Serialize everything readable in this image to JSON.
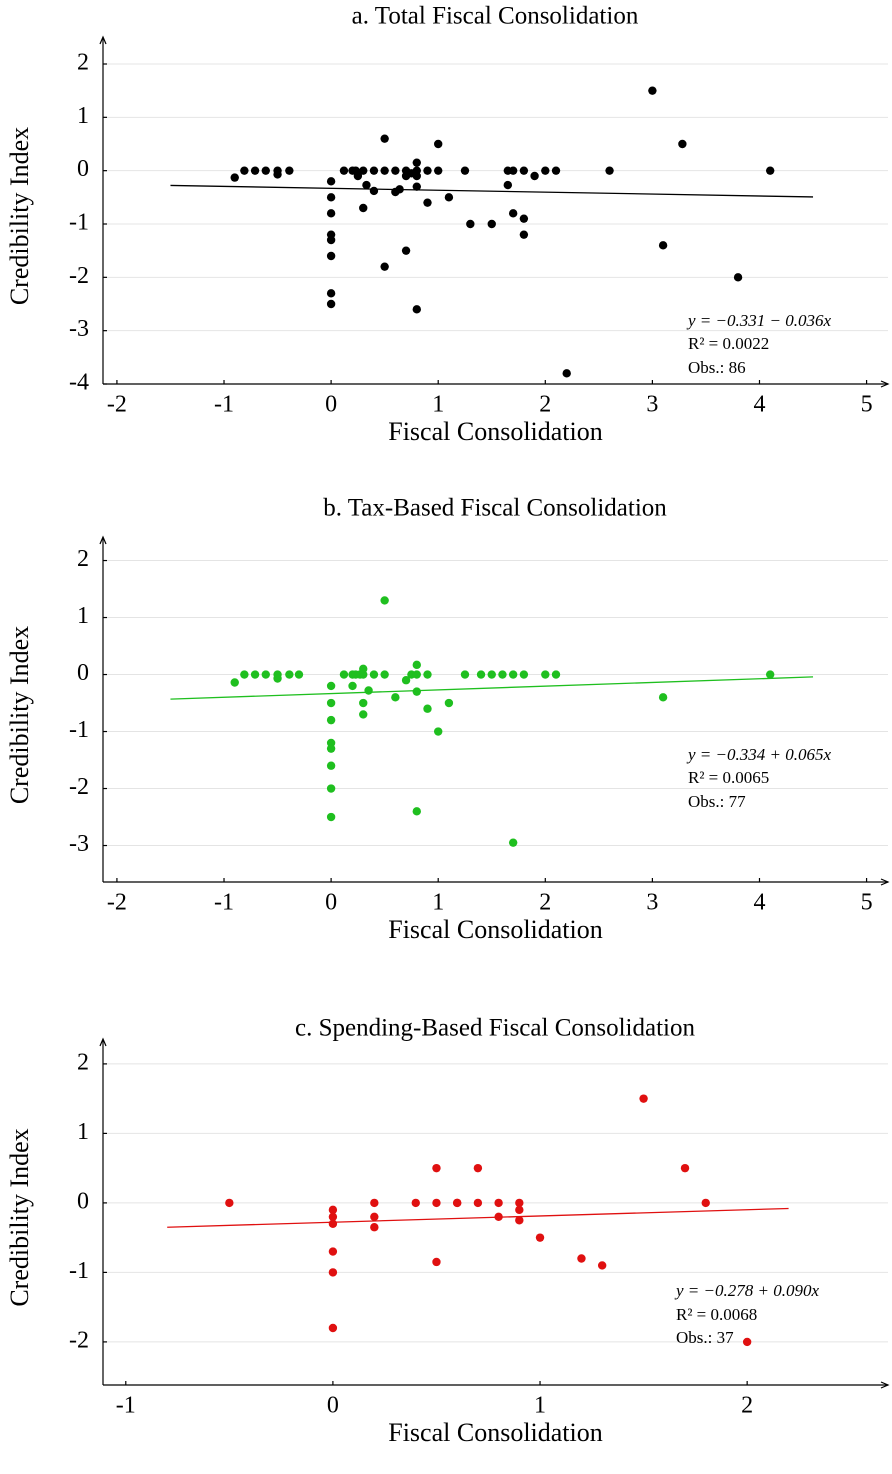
{
  "chart_data": [
    {
      "type": "scatter",
      "title": "a. Total Fiscal Consolidation",
      "x_label": "Fiscal Consolidation",
      "y_label": "Credibility Index",
      "color": "#000000",
      "grid": true,
      "xlim": [
        -2.13,
        5.2
      ],
      "ylim": [
        -4,
        2.3
      ],
      "xticks": [
        -2,
        -1,
        0,
        1,
        2,
        3,
        4,
        5
      ],
      "yticks": [
        -4,
        -3,
        -2,
        -1,
        0,
        1,
        2
      ],
      "x": [
        -0.9,
        -0.81,
        -0.71,
        -0.61,
        -0.5,
        -0.5,
        -0.39,
        0,
        0,
        0,
        0,
        0,
        0,
        0,
        0,
        0.12,
        0.2,
        0.23,
        0.25,
        0.3,
        0.33,
        0.3,
        0.4,
        0.4,
        0.5,
        0.5,
        0.5,
        0.6,
        0.6,
        0.64,
        0.7,
        0.7,
        0.7,
        0.75,
        0.8,
        0.8,
        0.8,
        0.8,
        0.8,
        0.9,
        0.9,
        1,
        1,
        1.1,
        1.25,
        1.3,
        1.5,
        1.65,
        1.65,
        1.7,
        1.7,
        1.8,
        1.8,
        1.8,
        1.9,
        2,
        2.1,
        2.2,
        2.6,
        3,
        3.1,
        3.28,
        3.8,
        4.1
      ],
      "values": [
        -0.13,
        0,
        0,
        0,
        0,
        -0.07,
        0,
        -0.2,
        -0.5,
        -0.8,
        -1.2,
        -1.3,
        -1.6,
        -2.3,
        -2.5,
        0,
        0,
        0,
        -0.1,
        0,
        -0.27,
        -0.7,
        0,
        -0.38,
        0.6,
        0,
        -1.8,
        0,
        -0.4,
        -0.35,
        -1.5,
        0,
        -0.1,
        -0.05,
        0.15,
        0,
        -0.1,
        -0.3,
        -2.6,
        -0.6,
        0,
        0,
        0.5,
        -0.5,
        0,
        -1,
        -1,
        0,
        -0.27,
        -0.8,
        0,
        0,
        -0.9,
        -1.2,
        -0.1,
        0,
        0,
        -3.8,
        0,
        1.5,
        -1.4,
        0.5,
        -2,
        0
      ],
      "fit": {
        "x": [
          -1.5,
          4.5
        ],
        "y": [
          -0.277,
          -0.493
        ]
      },
      "annotations": [
        "y = −0.331 − 0.036x",
        "R² = 0.0022",
        "Obs.: 86"
      ]
    },
    {
      "type": "scatter",
      "title": "b. Tax-Based Fiscal Consolidation",
      "x_label": "Fiscal Consolidation",
      "y_label": "Credibility Index",
      "color": "#1fbf1f",
      "grid": true,
      "xlim": [
        -2.13,
        5.2
      ],
      "ylim": [
        -3.64,
        2.22
      ],
      "xticks": [
        -2,
        -1,
        0,
        1,
        2,
        3,
        4,
        5
      ],
      "yticks": [
        -3,
        -2,
        -1,
        0,
        1,
        2
      ],
      "x": [
        -0.9,
        -0.81,
        -0.71,
        -0.61,
        -0.5,
        -0.5,
        -0.39,
        -0.3,
        0,
        0,
        0,
        0,
        0,
        0,
        0,
        0,
        0.12,
        0.2,
        0.23,
        0.27,
        0.2,
        0.3,
        0.3,
        0.3,
        0.3,
        0.35,
        0.4,
        0.5,
        0.5,
        0.6,
        0.7,
        0.75,
        0.8,
        0.8,
        0.8,
        0.8,
        0.9,
        0.9,
        1,
        1.1,
        1.25,
        1.4,
        1.5,
        1.6,
        1.7,
        1.7,
        1.8,
        2,
        2.1,
        3.1,
        4.1
      ],
      "values": [
        -0.14,
        0,
        0,
        0,
        0,
        -0.07,
        0,
        0,
        -0.2,
        -0.5,
        -0.8,
        -1.2,
        -1.3,
        -1.6,
        -2,
        -2.5,
        0,
        0,
        0,
        0,
        -0.2,
        0,
        0.1,
        -0.5,
        -0.7,
        -0.28,
        0,
        0,
        1.3,
        -0.4,
        -0.1,
        0,
        0.17,
        0,
        -0.3,
        -2.4,
        -0.6,
        0,
        -1,
        -0.5,
        0,
        0,
        0,
        0,
        0,
        -2.95,
        0,
        0,
        0,
        -0.4,
        0
      ],
      "fit": {
        "x": [
          -1.5,
          4.5
        ],
        "y": [
          -0.4315,
          -0.0415
        ]
      },
      "annotations": [
        "y = −0.334 + 0.065x",
        "R² = 0.0065",
        "Obs.: 77"
      ]
    },
    {
      "type": "scatter",
      "title": "c. Spending-Based Fiscal Consolidation",
      "x_label": "Fiscal Consolidation",
      "y_label": "Credibility Index",
      "color": "#e01010",
      "grid": true,
      "xlim": [
        -1.11,
        2.68
      ],
      "ylim": [
        -2.62,
        2.2
      ],
      "xticks": [
        -1,
        0,
        1,
        2
      ],
      "yticks": [
        -2,
        -1,
        0,
        1,
        2
      ],
      "x": [
        -0.5,
        0,
        0,
        0,
        0,
        0,
        0,
        0.2,
        0.2,
        0.2,
        0.4,
        0.5,
        0.5,
        0.5,
        0.6,
        0.6,
        0.7,
        0.7,
        0.8,
        0.8,
        0.9,
        0.9,
        0.9,
        1,
        1.2,
        1.3,
        1.5,
        1.7,
        1.8,
        2
      ],
      "values": [
        0,
        -0.1,
        -0.2,
        -0.3,
        -0.7,
        -1,
        -1.8,
        0,
        -0.2,
        -0.35,
        0,
        0.5,
        0,
        -0.85,
        0,
        0,
        0.5,
        0,
        0,
        -0.2,
        0,
        -0.1,
        -0.25,
        -0.5,
        -0.8,
        -0.9,
        1.5,
        0.5,
        0,
        -2
      ],
      "fit": {
        "x": [
          -0.8,
          2.2
        ],
        "y": [
          -0.35,
          -0.08
        ]
      },
      "annotations": [
        "y = −0.278 + 0.090x",
        "R² = 0.0068",
        "Obs.: 37"
      ]
    }
  ]
}
